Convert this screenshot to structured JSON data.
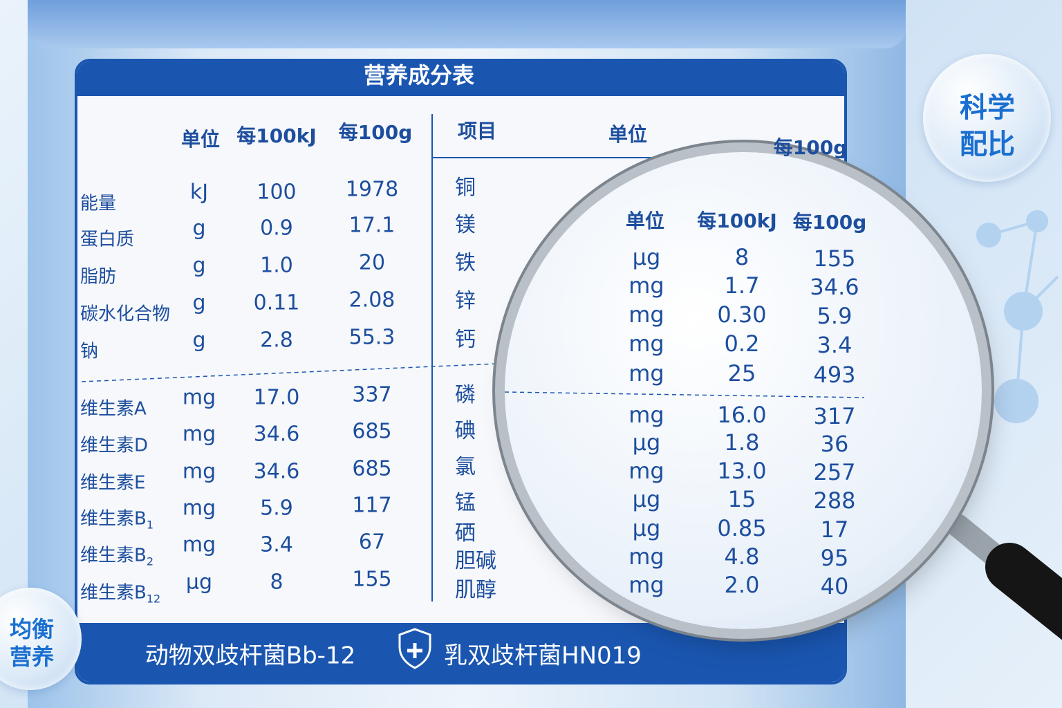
{
  "title": "营养成分表",
  "left_table": {
    "header": {
      "unit": "单位",
      "per_100kj": "每100kJ",
      "per_100g": "每100g"
    },
    "rows": [
      {
        "name": "能量",
        "unit": "kJ",
        "per_100kj": "100",
        "per_100g": "1978"
      },
      {
        "name": "蛋白质",
        "unit": "g",
        "per_100kj": "0.9",
        "per_100g": "17.1"
      },
      {
        "name": "脂肪",
        "unit": "g",
        "per_100kj": "1.0",
        "per_100g": "20"
      },
      {
        "name": "碳水化合物",
        "unit": "g",
        "per_100kj": "0.11",
        "per_100g": "2.08"
      },
      {
        "name": "钠",
        "unit": "g",
        "per_100kj": "2.8",
        "per_100g": "55.3"
      },
      {
        "name": "维生素A",
        "unit": "mg",
        "per_100kj": "17.0",
        "per_100g": "337"
      },
      {
        "name": "维生素D",
        "unit": "mg",
        "per_100kj": "34.6",
        "per_100g": "685"
      },
      {
        "name": "维生素E",
        "unit": "mg",
        "per_100kj": "34.6",
        "per_100g": "685"
      },
      {
        "name": "维生素B",
        "sub": "1",
        "unit": "mg",
        "per_100kj": "5.9",
        "per_100g": "117"
      },
      {
        "name": "维生素B",
        "sub": "2",
        "unit": "mg",
        "per_100kj": "3.4",
        "per_100g": "67"
      },
      {
        "name": "维生素B",
        "sub": "12",
        "unit": "μg",
        "per_100kj": "8",
        "per_100g": "155"
      }
    ]
  },
  "right_table": {
    "header": {
      "item": "项目",
      "unit": "单位",
      "per_100kj": "每100kJ",
      "per_100g": "每100g"
    },
    "rows": [
      {
        "name": "铜",
        "unit": "μg",
        "per_100kj": "8",
        "per_100g": "155"
      },
      {
        "name": "镁",
        "unit": "mg",
        "per_100kj": "1.7",
        "per_100g": "34.6"
      },
      {
        "name": "铁",
        "unit": "mg",
        "per_100kj": "0.30",
        "per_100g": "5.9"
      },
      {
        "name": "锌",
        "unit": "mg",
        "per_100kj": "0.2",
        "per_100g": "3.4"
      },
      {
        "name": "钙",
        "unit": "mg",
        "per_100kj": "25",
        "per_100g": "493"
      },
      {
        "name": "磷",
        "unit": "mg",
        "per_100kj": "16.0",
        "per_100g": "317"
      },
      {
        "name": "碘",
        "unit": "μg",
        "per_100kj": "1.8",
        "per_100g": "36"
      },
      {
        "name": "氯",
        "unit": "mg",
        "per_100kj": "13.0",
        "per_100g": "257"
      },
      {
        "name": "锰",
        "unit": "μg",
        "per_100kj": "15",
        "per_100g": "288"
      },
      {
        "name": "硒",
        "unit": "μg",
        "per_100kj": "0.85",
        "per_100g": "17"
      },
      {
        "name": "胆碱",
        "unit": "mg",
        "per_100kj": "4.8",
        "per_100g": "95"
      },
      {
        "name": "肌醇",
        "unit": "mg",
        "per_100kj": "2.0",
        "per_100g": "40"
      }
    ]
  },
  "footer": {
    "left": "动物双歧杆菌Bb-12",
    "right": "乳双歧杆菌HN019"
  },
  "badges": {
    "top_right": [
      "科学",
      "配比"
    ],
    "bottom_left": [
      "均衡",
      "营养"
    ]
  }
}
